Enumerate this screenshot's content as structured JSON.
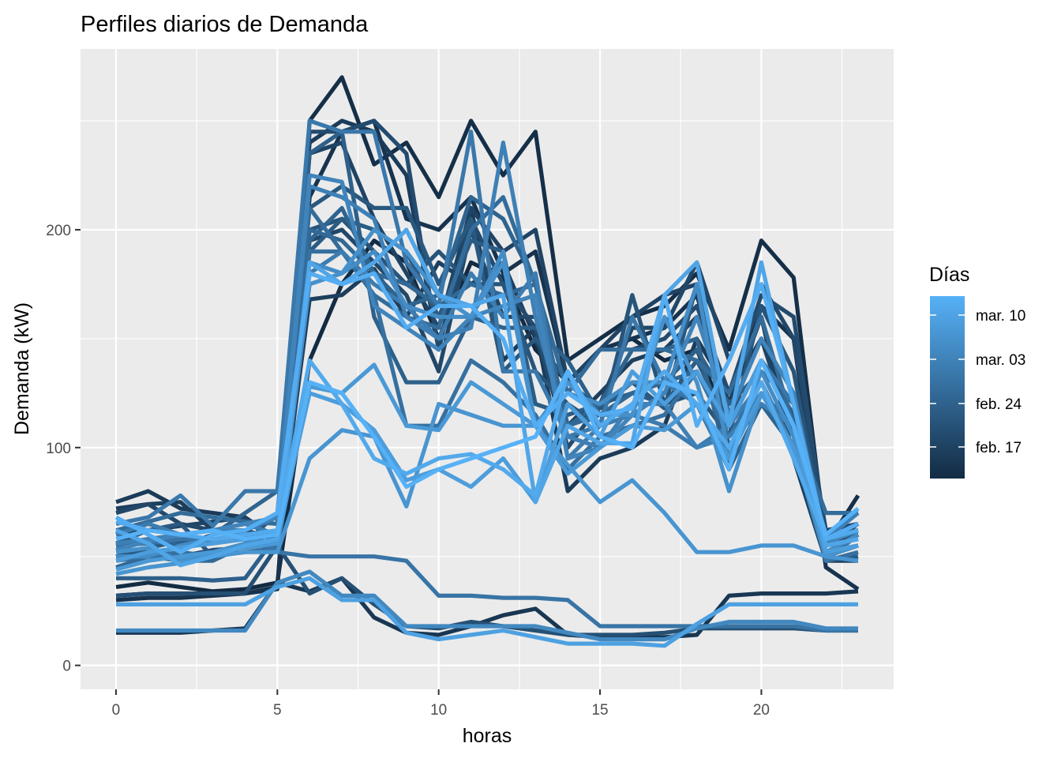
{
  "chart_data": {
    "type": "line",
    "title": "Perfiles diarios de Demanda",
    "xlabel": "horas",
    "ylabel": "Demanda (kW)",
    "xlim": [
      -1.1,
      24.1
    ],
    "ylim": [
      -11,
      283
    ],
    "x_ticks": [
      0,
      5,
      10,
      15,
      20
    ],
    "x_tick_labels": [
      "0",
      "5",
      "10",
      "15",
      "20"
    ],
    "y_ticks": [
      0,
      100,
      200
    ],
    "y_tick_labels": [
      "0",
      "100",
      "200"
    ],
    "grid": true,
    "background": "#EBEBEB",
    "legend": {
      "title": "Días",
      "placement": "right",
      "type": "colorbar",
      "labels": [
        "mar. 10",
        "mar. 03",
        "feb. 24",
        "feb. 17"
      ],
      "color_low": "#132B43",
      "color_high": "#56B1F7"
    },
    "x": [
      0,
      1,
      2,
      3,
      4,
      5,
      6,
      7,
      8,
      9,
      10,
      11,
      12,
      13,
      14,
      15,
      16,
      17,
      18,
      19,
      20,
      21,
      22,
      23
    ],
    "series": [
      {
        "day": 0,
        "values": [
          36,
          38,
          36,
          34,
          35,
          38,
          140,
          175,
          195,
          185,
          150,
          185,
          178,
          145,
          130,
          145,
          150,
          140,
          145,
          110,
          140,
          120,
          55,
          65
        ]
      },
      {
        "day": 1,
        "values": [
          32,
          33,
          33,
          33,
          33,
          35,
          250,
          270,
          230,
          240,
          215,
          250,
          225,
          245,
          140,
          150,
          160,
          165,
          180,
          145,
          195,
          178,
          55,
          78
        ]
      },
      {
        "day": 2,
        "values": [
          30,
          31,
          31,
          32,
          33,
          36,
          215,
          245,
          250,
          205,
          200,
          215,
          180,
          190,
          130,
          145,
          150,
          155,
          170,
          120,
          165,
          150,
          45,
          35
        ]
      },
      {
        "day": 3,
        "values": [
          15,
          15,
          15,
          16,
          17,
          38,
          34,
          40,
          22,
          15,
          14,
          18,
          23,
          26,
          14,
          13,
          13,
          13,
          14,
          32,
          33,
          33,
          33,
          34
        ]
      },
      {
        "day": 4,
        "values": [
          75,
          80,
          72,
          70,
          68,
          58,
          240,
          250,
          245,
          225,
          145,
          210,
          140,
          155,
          80,
          95,
          100,
          110,
          150,
          125,
          150,
          110,
          57,
          60
        ]
      },
      {
        "day": 5,
        "values": [
          72,
          74,
          75,
          62,
          60,
          55,
          168,
          170,
          182,
          160,
          185,
          175,
          185,
          150,
          110,
          125,
          140,
          145,
          160,
          120,
          160,
          95,
          48,
          48
        ]
      },
      {
        "day": 6,
        "values": [
          60,
          62,
          64,
          66,
          68,
          55,
          235,
          240,
          205,
          180,
          155,
          210,
          190,
          200,
          130,
          145,
          160,
          170,
          175,
          115,
          150,
          105,
          58,
          62
        ]
      },
      {
        "day": 7,
        "values": [
          70,
          74,
          65,
          62,
          62,
          58,
          195,
          200,
          185,
          170,
          135,
          200,
          160,
          160,
          110,
          120,
          155,
          155,
          185,
          140,
          175,
          150,
          62,
          65
        ]
      },
      {
        "day": 8,
        "values": [
          50,
          52,
          50,
          53,
          54,
          56,
          245,
          245,
          250,
          235,
          145,
          205,
          175,
          155,
          100,
          120,
          145,
          150,
          165,
          125,
          170,
          160,
          60,
          62
        ]
      },
      {
        "day": 9,
        "values": [
          32,
          33,
          33,
          33,
          33,
          55,
          33,
          40,
          28,
          18,
          17,
          20,
          18,
          16,
          14,
          14,
          14,
          15,
          17,
          17,
          17,
          17,
          16,
          16
        ]
      },
      {
        "day": 10,
        "values": [
          55,
          58,
          60,
          62,
          60,
          60,
          200,
          205,
          190,
          175,
          190,
          175,
          175,
          135,
          120,
          110,
          170,
          120,
          125,
          105,
          165,
          135,
          58,
          60
        ]
      },
      {
        "day": 11,
        "values": [
          56,
          62,
          65,
          50,
          56,
          70,
          210,
          220,
          210,
          210,
          175,
          205,
          135,
          150,
          130,
          118,
          130,
          118,
          175,
          100,
          120,
          110,
          55,
          58
        ]
      },
      {
        "day": 12,
        "values": [
          50,
          54,
          57,
          56,
          58,
          60,
          190,
          205,
          200,
          190,
          160,
          195,
          190,
          120,
          115,
          120,
          125,
          120,
          140,
          110,
          140,
          115,
          48,
          50
        ]
      },
      {
        "day": 13,
        "values": [
          40,
          40,
          40,
          39,
          40,
          60,
          235,
          245,
          160,
          130,
          130,
          160,
          155,
          155,
          140,
          115,
          125,
          130,
          145,
          120,
          135,
          120,
          52,
          55
        ]
      },
      {
        "day": 14,
        "values": [
          55,
          58,
          55,
          60,
          70,
          80,
          195,
          210,
          180,
          165,
          170,
          215,
          205,
          175,
          110,
          120,
          145,
          145,
          150,
          90,
          120,
          100,
          52,
          55
        ]
      },
      {
        "day": 15,
        "values": [
          45,
          50,
          48,
          48,
          55,
          55,
          200,
          195,
          180,
          175,
          165,
          175,
          170,
          175,
          110,
          115,
          125,
          130,
          135,
          105,
          125,
          110,
          50,
          55
        ]
      },
      {
        "day": 16,
        "values": [
          62,
          66,
          70,
          68,
          66,
          65,
          210,
          190,
          170,
          160,
          155,
          200,
          215,
          175,
          125,
          145,
          145,
          145,
          140,
          125,
          160,
          110,
          70,
          70
        ]
      },
      {
        "day": 17,
        "values": [
          48,
          50,
          52,
          50,
          52,
          54,
          190,
          190,
          170,
          110,
          110,
          140,
          130,
          115,
          90,
          105,
          110,
          115,
          135,
          105,
          130,
          100,
          48,
          52
        ]
      },
      {
        "day": 18,
        "values": [
          55,
          56,
          58,
          58,
          60,
          52,
          50,
          50,
          50,
          48,
          32,
          32,
          31,
          31,
          30,
          18,
          18,
          18,
          18,
          18,
          18,
          18,
          16,
          16
        ]
      },
      {
        "day": 19,
        "values": [
          65,
          68,
          78,
          64,
          80,
          80,
          250,
          245,
          245,
          185,
          165,
          245,
          135,
          135,
          105,
          110,
          160,
          130,
          120,
          90,
          140,
          120,
          48,
          60
        ]
      },
      {
        "day": 20,
        "values": [
          60,
          65,
          60,
          62,
          65,
          60,
          180,
          190,
          175,
          165,
          150,
          180,
          160,
          180,
          95,
          110,
          115,
          110,
          100,
          110,
          130,
          100,
          58,
          65
        ]
      },
      {
        "day": 21,
        "values": [
          56,
          58,
          60,
          62,
          62,
          68,
          220,
          215,
          205,
          160,
          150,
          155,
          240,
          160,
          105,
          100,
          120,
          120,
          100,
          105,
          120,
          110,
          58,
          70
        ]
      },
      {
        "day": 22,
        "values": [
          53,
          57,
          60,
          62,
          65,
          68,
          225,
          222,
          165,
          155,
          145,
          160,
          165,
          170,
          95,
          100,
          115,
          125,
          160,
          115,
          150,
          125,
          56,
          62
        ]
      },
      {
        "day": 23,
        "values": [
          16,
          16,
          16,
          16,
          16,
          38,
          43,
          32,
          32,
          18,
          18,
          18,
          18,
          18,
          15,
          12,
          12,
          12,
          17,
          20,
          20,
          20,
          17,
          17
        ]
      },
      {
        "day": 24,
        "values": [
          50,
          50,
          55,
          58,
          60,
          60,
          185,
          180,
          190,
          165,
          160,
          160,
          190,
          110,
          125,
          120,
          130,
          130,
          175,
          95,
          135,
          105,
          52,
          60
        ]
      },
      {
        "day": 25,
        "values": [
          52,
          54,
          48,
          52,
          56,
          58,
          175,
          180,
          200,
          190,
          170,
          160,
          185,
          110,
          130,
          115,
          115,
          160,
          130,
          80,
          125,
          100,
          50,
          55
        ]
      },
      {
        "day": 26,
        "values": [
          42,
          45,
          47,
          50,
          52,
          52,
          95,
          108,
          105,
          73,
          120,
          115,
          110,
          110,
          92,
          75,
          85,
          70,
          52,
          52,
          55,
          55,
          50,
          48
        ]
      },
      {
        "day": 27,
        "values": [
          44,
          48,
          50,
          52,
          54,
          56,
          128,
          125,
          138,
          110,
          108,
          130,
          120,
          110,
          88,
          100,
          110,
          108,
          120,
          95,
          125,
          100,
          55,
          58
        ]
      },
      {
        "day": 28,
        "values": [
          48,
          52,
          54,
          56,
          58,
          60,
          125,
          120,
          108,
          85,
          90,
          82,
          95,
          75,
          120,
          105,
          135,
          120,
          135,
          110,
          140,
          110,
          52,
          55
        ]
      },
      {
        "day": 29,
        "values": [
          28,
          28,
          28,
          28,
          28,
          36,
          40,
          30,
          30,
          15,
          12,
          14,
          16,
          13,
          10,
          10,
          10,
          9,
          19,
          28,
          28,
          28,
          28,
          28
        ]
      },
      {
        "day": 30,
        "values": [
          62,
          56,
          46,
          50,
          55,
          58,
          185,
          175,
          185,
          200,
          170,
          165,
          170,
          75,
          110,
          102,
          102,
          170,
          185,
          110,
          185,
          120,
          55,
          58
        ]
      },
      {
        "day": 31,
        "values": [
          66,
          62,
          60,
          58,
          60,
          62,
          140,
          120,
          95,
          88,
          95,
          97,
          90,
          78,
          135,
          110,
          120,
          135,
          120,
          100,
          130,
          95,
          58,
          62
        ]
      },
      {
        "day": 32,
        "values": [
          68,
          60,
          52,
          60,
          62,
          70,
          180,
          175,
          180,
          155,
          165,
          165,
          150,
          110,
          125,
          115,
          118,
          170,
          110,
          140,
          175,
          120,
          58,
          65
        ]
      },
      {
        "day": 33,
        "values": [
          58,
          62,
          60,
          62,
          58,
          60,
          130,
          125,
          105,
          82,
          90,
          95,
          100,
          105,
          135,
          105,
          100,
          130,
          125,
          90,
          140,
          110,
          60,
          72
        ]
      }
    ]
  }
}
